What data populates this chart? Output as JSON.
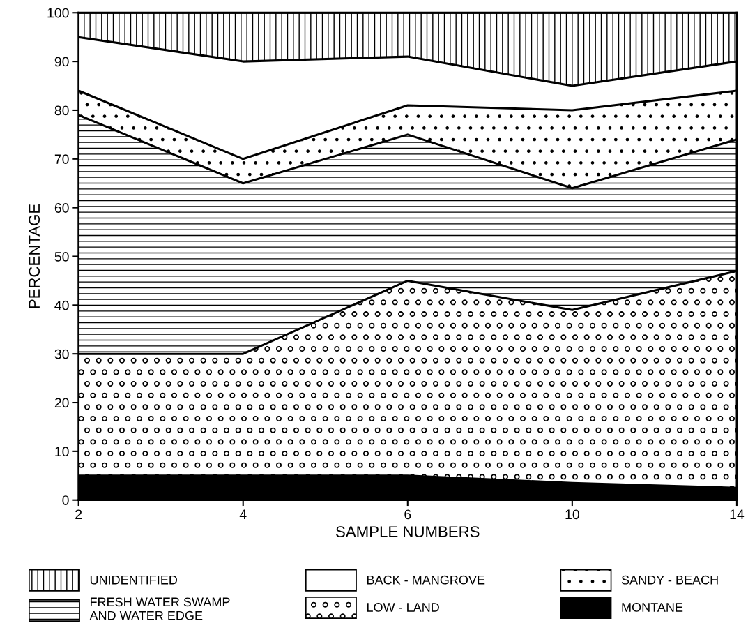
{
  "chart_data": {
    "type": "area",
    "stacked": true,
    "xlabel": "SAMPLE NUMBERS",
    "ylabel": "PERCENTAGE",
    "categories": [
      "2",
      "4",
      "6",
      "10",
      "14"
    ],
    "ylim": [
      0,
      100
    ],
    "yticks": [
      0,
      10,
      20,
      30,
      40,
      50,
      60,
      70,
      80,
      90,
      100
    ],
    "grid": false,
    "legend": "bottom",
    "series": [
      {
        "name": "MONTANE",
        "color": "#000000",
        "values": [
          5,
          5,
          5,
          3.5,
          2.5
        ]
      },
      {
        "name": "LOW - LAND",
        "color": "#ffffff",
        "values": [
          25,
          25,
          40,
          35.5,
          44.5
        ]
      },
      {
        "name": "FRESH WATER SWAMP\nAND WATER EDGE",
        "color": "#ffffff",
        "values": [
          49,
          35,
          30,
          25,
          27
        ]
      },
      {
        "name": "SANDY - BEACH",
        "color": "#ffffff",
        "values": [
          5,
          5,
          6,
          16,
          10
        ]
      },
      {
        "name": "BACK - MANGROVE",
        "color": "#ffffff",
        "values": [
          11,
          20,
          10,
          5,
          6
        ]
      },
      {
        "name": "UNIDENTIFIED",
        "color": "#ffffff",
        "values": [
          5,
          10,
          9,
          15,
          10
        ]
      }
    ]
  }
}
